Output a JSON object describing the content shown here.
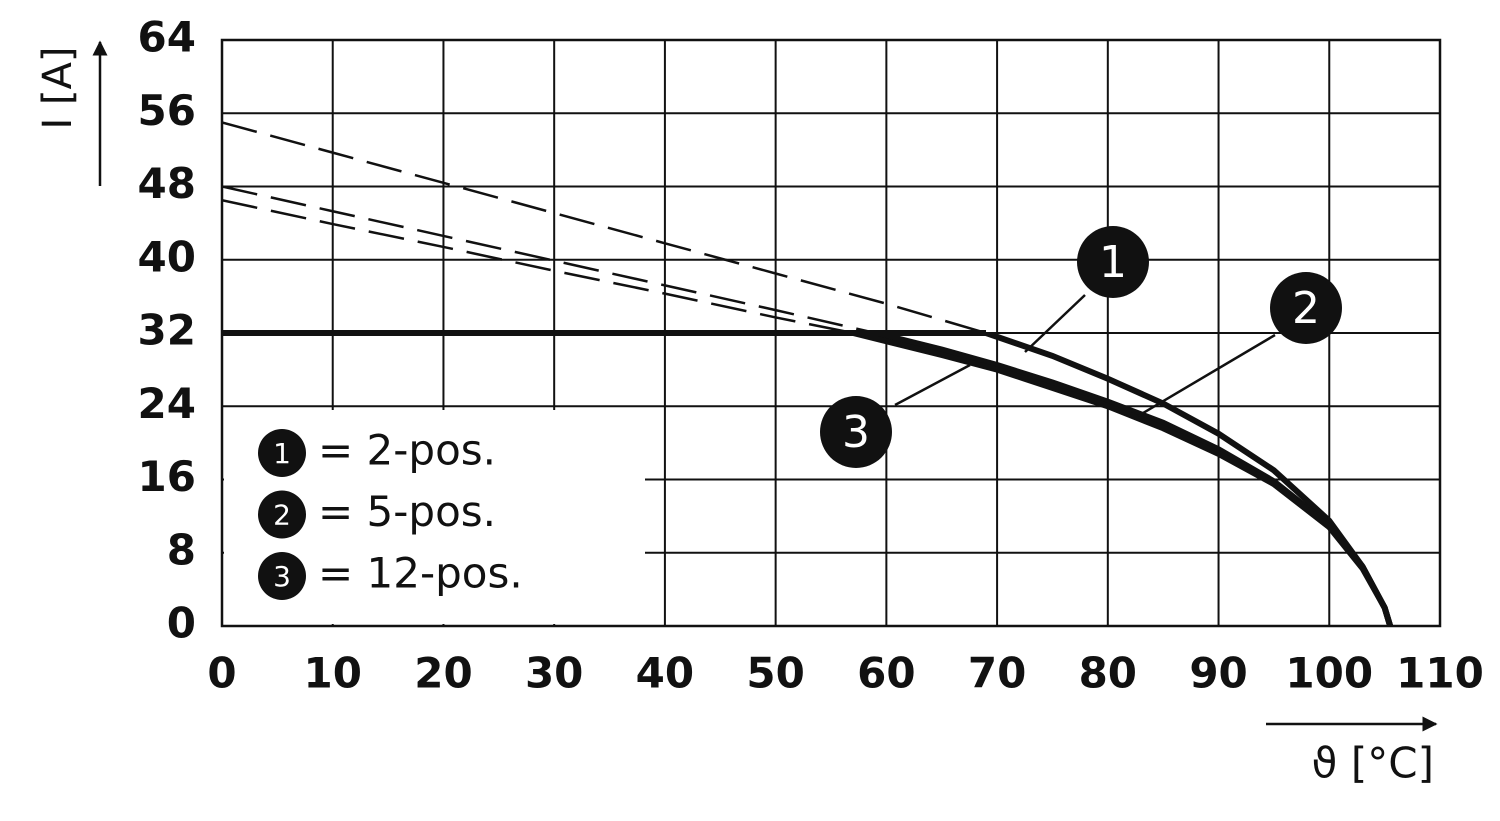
{
  "chart_data": {
    "type": "line",
    "xlabel": "ϑ [°C]",
    "ylabel": "I [A]",
    "xlim": [
      0,
      110
    ],
    "xticks": [
      0,
      10,
      20,
      30,
      40,
      50,
      60,
      70,
      80,
      90,
      100,
      110
    ],
    "ylim": [
      0,
      64
    ],
    "yticks": [
      0,
      8,
      16,
      24,
      32,
      40,
      48,
      56,
      64
    ],
    "grid": true,
    "limit": {
      "x": [
        0,
        69
      ],
      "values": [
        32,
        32
      ],
      "color": "#111111"
    },
    "series": [
      {
        "name": "= 2-pos.",
        "label": "1",
        "color": "#111111",
        "x": [
          0,
          10,
          20,
          30,
          40,
          50,
          60,
          69,
          75,
          80,
          85,
          90,
          95,
          100,
          103,
          105,
          105.5
        ],
        "values": [
          55,
          51.7,
          48.4,
          45.1,
          41.8,
          38.5,
          35.2,
          32,
          29.5,
          27,
          24.3,
          21,
          17,
          11.5,
          6.5,
          2,
          0
        ]
      },
      {
        "name": "= 5-pos.",
        "label": "2",
        "color": "#111111",
        "x": [
          0,
          10,
          20,
          30,
          40,
          50,
          59,
          65,
          70,
          75,
          80,
          85,
          90,
          95,
          100,
          103,
          105,
          105.5
        ],
        "values": [
          48,
          45.3,
          42.6,
          39.9,
          37.2,
          34.5,
          32,
          30.2,
          28.5,
          26.6,
          24.5,
          22.2,
          19.3,
          15.8,
          11,
          6.5,
          2,
          0
        ]
      },
      {
        "name": "= 12-pos.",
        "label": "3",
        "color": "#111111",
        "x": [
          0,
          10,
          20,
          30,
          40,
          50,
          57,
          65,
          70,
          75,
          80,
          85,
          90,
          95,
          100,
          103,
          105,
          105.5
        ],
        "values": [
          46.5,
          43.9,
          41.4,
          38.8,
          36.3,
          33.7,
          32,
          29.6,
          28,
          26,
          24,
          21.6,
          18.8,
          15.5,
          10.8,
          6.3,
          2,
          0
        ]
      }
    ]
  }
}
